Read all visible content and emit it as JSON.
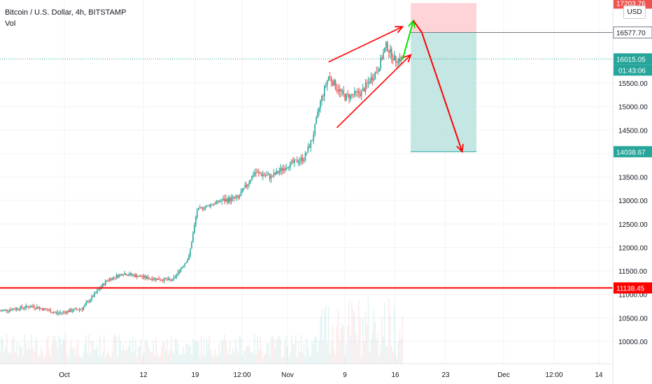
{
  "header": {
    "symbol_title": "Bitcoin / U.S. Dollar, 4h, BITSTAMP",
    "volume_label": "Vol",
    "currency_button": "USD"
  },
  "price_badges": {
    "target_top": "17203.76",
    "entry": "16577.70",
    "current": "16015.05",
    "countdown": "01:43:06",
    "stop_target": "14038.67",
    "support": "11138.45"
  },
  "colors": {
    "up": "#26a69a",
    "down": "#ef5350",
    "arrow_up": "#00e600",
    "arrow_down": "#ff0000",
    "support_line": "#ff0000",
    "profit_zone": "#b2dfdb",
    "loss_zone": "#ffcdd2",
    "grid": "#f0f3fa"
  },
  "chart_data": {
    "type": "candlestick",
    "title": "Bitcoin / U.S. Dollar, 4h, BITSTAMP",
    "y_axis_ticks": [
      "10000.00",
      "10500.00",
      "11000.00",
      "11500.00",
      "12000.00",
      "12500.00",
      "13000.00",
      "13500.00",
      "14000.00",
      "14500.00",
      "15000.00",
      "15500.00"
    ],
    "ylim": [
      9600,
      17300
    ],
    "x_axis_ticks": [
      "Oct",
      "12",
      "19",
      "12:00",
      "Nov",
      "9",
      "16",
      "23",
      "Dec",
      "12:00",
      "14"
    ],
    "price_path": [
      [
        "Sep 27",
        10650
      ],
      [
        "Oct 1",
        10750
      ],
      [
        "Oct 4",
        10600
      ],
      [
        "Oct 7",
        10700
      ],
      [
        "Oct 10",
        11300
      ],
      [
        "Oct 12",
        11450
      ],
      [
        "Oct 15",
        11350
      ],
      [
        "Oct 18",
        11300
      ],
      [
        "Oct 20",
        11800
      ],
      [
        "Oct 21",
        12800
      ],
      [
        "Oct 24",
        13000
      ],
      [
        "Oct 26",
        13050
      ],
      [
        "Oct 28",
        13600
      ],
      [
        "Oct 30",
        13500
      ],
      [
        "Nov 1",
        13750
      ],
      [
        "Nov 3",
        13900
      ],
      [
        "Nov 4",
        14300
      ],
      [
        "Nov 5",
        15100
      ],
      [
        "Nov 6",
        15650
      ],
      [
        "Nov 7",
        15400
      ],
      [
        "Nov 8",
        15200
      ],
      [
        "Nov 10",
        15300
      ],
      [
        "Nov 12",
        15800
      ],
      [
        "Nov 13",
        16300
      ],
      [
        "Nov 14",
        16000
      ],
      [
        "Nov 15",
        16015
      ]
    ],
    "horizontal_line": 11138.45,
    "wedge_upper": [
      [
        "Nov 6",
        15950
      ],
      [
        "Nov 15",
        16700
      ]
    ],
    "wedge_lower": [
      [
        "Nov 7",
        14550
      ],
      [
        "Nov 16",
        16100
      ]
    ],
    "projection": [
      [
        "Nov 15",
        16000
      ],
      [
        "Nov 17",
        16830
      ],
      [
        "Nov 17",
        16580
      ],
      [
        "Nov 22",
        14040
      ]
    ],
    "position": {
      "entry": 16577.7,
      "target": 14038.67,
      "stop": 17203.76,
      "from": "Nov 16",
      "to": "Nov 24"
    },
    "grid": true
  }
}
